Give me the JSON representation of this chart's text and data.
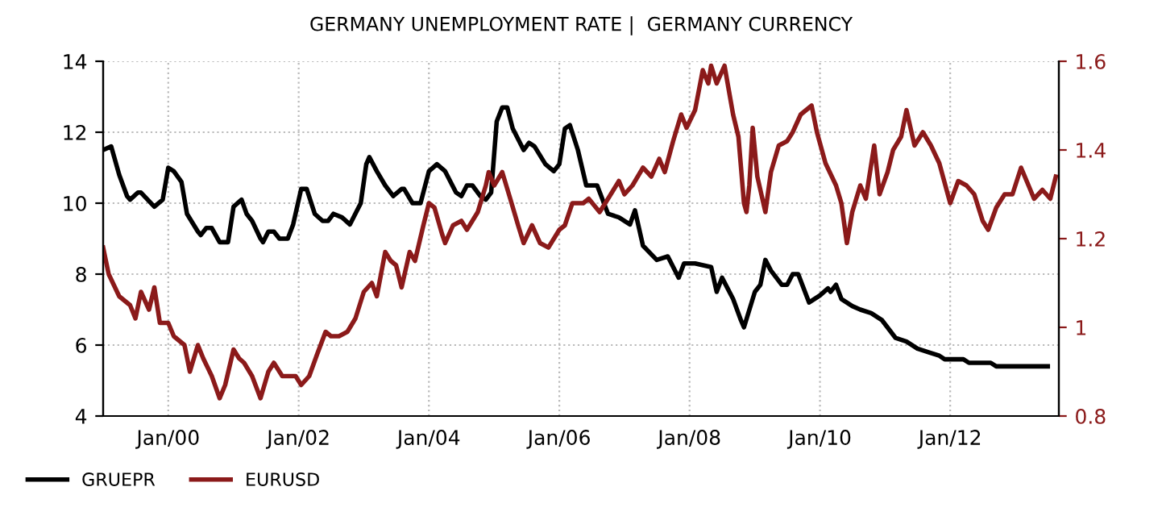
{
  "chart_data": {
    "type": "line",
    "title": "GERMANY UNEMPLOYMENT RATE |  GERMANY CURRENCY",
    "xlim": [
      "1999-01-01",
      "2013-09-01"
    ],
    "xticks": [
      {
        "value": "2000-01-01",
        "label": "Jan/00"
      },
      {
        "value": "2002-01-01",
        "label": "Jan/02"
      },
      {
        "value": "2004-01-01",
        "label": "Jan/04"
      },
      {
        "value": "2006-01-01",
        "label": "Jan/06"
      },
      {
        "value": "2008-01-01",
        "label": "Jan/08"
      },
      {
        "value": "2010-01-01",
        "label": "Jan/10"
      },
      {
        "value": "2012-01-01",
        "label": "Jan/12"
      }
    ],
    "ylim": [
      4,
      14
    ],
    "yticks": [
      4,
      6,
      8,
      10,
      12,
      14
    ],
    "y2lim": [
      0.8,
      1.6
    ],
    "y2ticks": [
      0.8,
      1,
      1.2,
      1.4,
      1.6
    ],
    "grid": true,
    "legend": "bottom left",
    "line_style": "solid",
    "marker": "none",
    "series": [
      {
        "name": "GRUEPR",
        "color": "#000000",
        "x": [
          "1999-01-01",
          "1999-02-15",
          "1999-04-01",
          "1999-05-15",
          "1999-06-01",
          "1999-07-15",
          "1999-08-01",
          "1999-10-15",
          "1999-12-01",
          "2000-01-01",
          "2000-02-01",
          "2000-03-15",
          "2000-04-15",
          "2000-06-15",
          "2000-07-01",
          "2000-08-01",
          "2000-09-01",
          "2000-10-15",
          "2000-12-01",
          "2001-01-01",
          "2001-02-15",
          "2001-03-15",
          "2001-04-15",
          "2001-06-01",
          "2001-06-15",
          "2001-07-15",
          "2001-08-15",
          "2001-09-15",
          "2001-11-01",
          "2001-12-01",
          "2002-01-15",
          "2002-02-15",
          "2002-04-01",
          "2002-05-15",
          "2002-06-15",
          "2002-07-15",
          "2002-09-01",
          "2002-10-15",
          "2002-12-15",
          "2003-01-15",
          "2003-02-01",
          "2003-03-15",
          "2003-05-01",
          "2003-06-15",
          "2003-08-01",
          "2003-08-15",
          "2003-10-01",
          "2003-11-15",
          "2004-01-01",
          "2004-02-15",
          "2004-04-01",
          "2004-06-01",
          "2004-07-01",
          "2004-08-01",
          "2004-09-01",
          "2004-10-15",
          "2004-11-15",
          "2004-12-15",
          "2005-01-15",
          "2005-02-15",
          "2005-03-15",
          "2005-04-15",
          "2005-06-15",
          "2005-07-15",
          "2005-08-15",
          "2005-10-15",
          "2005-12-01",
          "2006-01-01",
          "2006-02-01",
          "2006-03-01",
          "2006-04-15",
          "2006-06-01",
          "2006-08-01",
          "2006-10-01",
          "2006-12-01",
          "2007-02-01",
          "2007-03-01",
          "2007-04-15",
          "2007-07-01",
          "2007-09-01",
          "2007-11-01",
          "2007-12-01",
          "2008-02-01",
          "2008-05-01",
          "2008-06-01",
          "2008-07-01",
          "2008-09-01",
          "2008-10-15",
          "2008-11-01",
          "2009-01-01",
          "2009-02-01",
          "2009-03-01",
          "2009-04-01",
          "2009-06-01",
          "2009-07-01",
          "2009-08-01",
          "2009-09-01",
          "2009-11-01",
          "2010-01-01",
          "2010-02-15",
          "2010-03-01",
          "2010-04-01",
          "2010-05-01",
          "2010-07-01",
          "2010-08-15",
          "2010-10-15",
          "2010-12-15",
          "2011-03-01",
          "2011-05-01",
          "2011-07-01",
          "2011-09-01",
          "2011-11-01",
          "2011-12-01",
          "2012-03-15",
          "2012-04-15",
          "2012-08-15",
          "2012-09-15",
          "2013-07-01"
        ],
        "values": [
          11.5,
          11.6,
          10.8,
          10.2,
          10.1,
          10.3,
          10.3,
          9.9,
          10.1,
          11.0,
          10.9,
          10.6,
          9.7,
          9.2,
          9.1,
          9.3,
          9.3,
          8.9,
          8.9,
          9.9,
          10.1,
          9.7,
          9.5,
          9.0,
          8.9,
          9.2,
          9.2,
          9.0,
          9.0,
          9.4,
          10.4,
          10.4,
          9.7,
          9.5,
          9.5,
          9.7,
          9.6,
          9.4,
          10.0,
          11.1,
          11.3,
          10.9,
          10.5,
          10.2,
          10.4,
          10.4,
          10.0,
          10.0,
          10.9,
          11.1,
          10.9,
          10.3,
          10.2,
          10.5,
          10.5,
          10.2,
          10.1,
          10.3,
          12.3,
          12.7,
          12.7,
          12.1,
          11.5,
          11.7,
          11.6,
          11.1,
          10.9,
          11.1,
          12.1,
          12.2,
          11.5,
          10.5,
          10.5,
          9.7,
          9.6,
          9.4,
          9.8,
          8.8,
          8.4,
          8.5,
          7.9,
          8.3,
          8.3,
          8.2,
          7.5,
          7.9,
          7.3,
          6.7,
          6.5,
          7.5,
          7.7,
          8.4,
          8.1,
          7.7,
          7.7,
          8.0,
          8.0,
          7.2,
          7.4,
          7.6,
          7.5,
          7.7,
          7.3,
          7.1,
          7.0,
          6.9,
          6.7,
          6.2,
          6.1,
          5.9,
          5.8,
          5.7,
          5.6,
          5.6,
          5.5,
          5.5,
          5.4,
          5.4
        ]
      },
      {
        "name": "EURUSD",
        "color": "#8b1a1a",
        "axis": "y2",
        "x": [
          "1999-01-01",
          "1999-02-01",
          "1999-04-01",
          "1999-06-01",
          "1999-07-01",
          "1999-08-01",
          "1999-09-15",
          "1999-10-15",
          "1999-11-15",
          "2000-01-01",
          "2000-02-01",
          "2000-04-01",
          "2000-05-01",
          "2000-06-15",
          "2000-07-15",
          "2000-09-01",
          "2000-10-15",
          "2000-11-15",
          "2001-01-01",
          "2001-02-01",
          "2001-03-01",
          "2001-04-15",
          "2001-06-01",
          "2001-07-15",
          "2001-08-15",
          "2001-10-01",
          "2001-11-01",
          "2001-12-15",
          "2002-01-15",
          "2002-03-01",
          "2002-04-15",
          "2002-06-01",
          "2002-07-01",
          "2002-08-15",
          "2002-10-01",
          "2002-11-15",
          "2003-01-01",
          "2003-02-15",
          "2003-03-15",
          "2003-05-01",
          "2003-06-01",
          "2003-07-01",
          "2003-08-01",
          "2003-09-15",
          "2003-10-15",
          "2003-12-01",
          "2004-01-01",
          "2004-02-01",
          "2004-03-15",
          "2004-04-01",
          "2004-05-15",
          "2004-07-01",
          "2004-08-01",
          "2004-10-01",
          "2004-11-15",
          "2004-12-01",
          "2005-01-01",
          "2005-02-15",
          "2005-04-01",
          "2005-05-15",
          "2005-06-15",
          "2005-08-01",
          "2005-09-15",
          "2005-11-01",
          "2006-01-01",
          "2006-02-01",
          "2006-03-15",
          "2006-05-15",
          "2006-06-15",
          "2006-08-15",
          "2006-10-01",
          "2006-12-01",
          "2007-01-01",
          "2007-02-15",
          "2007-04-15",
          "2007-06-01",
          "2007-07-15",
          "2007-08-15",
          "2007-10-01",
          "2007-11-15",
          "2007-12-15",
          "2008-02-01",
          "2008-03-15",
          "2008-04-15",
          "2008-05-01",
          "2008-06-01",
          "2008-07-15",
          "2008-09-01",
          "2008-10-01",
          "2008-11-01",
          "2008-11-15",
          "2008-12-01",
          "2008-12-20",
          "2009-01-15",
          "2009-03-01",
          "2009-04-01",
          "2009-05-15",
          "2009-07-01",
          "2009-08-01",
          "2009-09-15",
          "2009-11-15",
          "2009-12-15",
          "2010-02-01",
          "2010-04-01",
          "2010-05-01",
          "2010-06-01",
          "2010-07-01",
          "2010-08-15",
          "2010-09-15",
          "2010-11-01",
          "2010-12-01",
          "2011-01-15",
          "2011-02-15",
          "2011-04-01",
          "2011-05-01",
          "2011-06-15",
          "2011-08-01",
          "2011-09-15",
          "2011-11-01",
          "2012-01-01",
          "2012-02-15",
          "2012-04-01",
          "2012-05-15",
          "2012-07-01",
          "2012-08-01",
          "2012-09-15",
          "2012-11-01",
          "2012-12-15",
          "2013-02-01",
          "2013-03-15",
          "2013-04-15",
          "2013-06-01",
          "2013-07-15",
          "2013-08-15"
        ],
        "values": [
          1.18,
          1.12,
          1.07,
          1.05,
          1.02,
          1.08,
          1.04,
          1.09,
          1.01,
          1.01,
          0.98,
          0.96,
          0.9,
          0.96,
          0.93,
          0.89,
          0.84,
          0.87,
          0.95,
          0.93,
          0.92,
          0.89,
          0.84,
          0.9,
          0.92,
          0.89,
          0.89,
          0.89,
          0.87,
          0.89,
          0.94,
          0.99,
          0.98,
          0.98,
          0.99,
          1.02,
          1.08,
          1.1,
          1.07,
          1.17,
          1.15,
          1.14,
          1.09,
          1.17,
          1.15,
          1.23,
          1.28,
          1.27,
          1.21,
          1.19,
          1.23,
          1.24,
          1.22,
          1.26,
          1.32,
          1.35,
          1.32,
          1.35,
          1.29,
          1.23,
          1.19,
          1.23,
          1.19,
          1.18,
          1.22,
          1.23,
          1.28,
          1.28,
          1.29,
          1.26,
          1.29,
          1.33,
          1.3,
          1.32,
          1.36,
          1.34,
          1.38,
          1.35,
          1.42,
          1.48,
          1.45,
          1.49,
          1.58,
          1.55,
          1.59,
          1.55,
          1.59,
          1.48,
          1.43,
          1.28,
          1.26,
          1.32,
          1.45,
          1.34,
          1.26,
          1.35,
          1.41,
          1.42,
          1.44,
          1.48,
          1.5,
          1.44,
          1.37,
          1.32,
          1.28,
          1.19,
          1.26,
          1.32,
          1.29,
          1.41,
          1.3,
          1.35,
          1.4,
          1.43,
          1.49,
          1.41,
          1.44,
          1.41,
          1.37,
          1.28,
          1.33,
          1.32,
          1.3,
          1.24,
          1.22,
          1.27,
          1.3,
          1.3,
          1.36,
          1.32,
          1.29,
          1.31,
          1.29,
          1.34
        ]
      }
    ]
  }
}
